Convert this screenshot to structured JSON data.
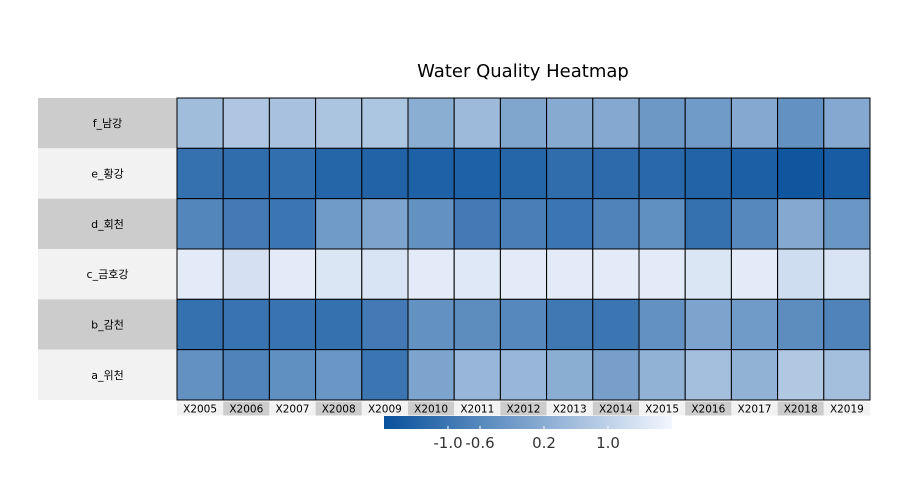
{
  "chart_data": {
    "type": "heatmap",
    "title": "Water Quality Heatmap",
    "rows": [
      "f_남강",
      "e_황강",
      "d_회천",
      "c_금호강",
      "b_감천",
      "a_위천"
    ],
    "columns": [
      "X2005",
      "X2006",
      "X2007",
      "X2008",
      "X2009",
      "X2010",
      "X2011",
      "X2012",
      "X2013",
      "X2014",
      "X2015",
      "X2016",
      "X2017",
      "X2018",
      "X2019"
    ],
    "values": [
      [
        0.55,
        0.75,
        0.65,
        0.7,
        0.72,
        0.2,
        0.5,
        0.05,
        0.15,
        0.1,
        -0.25,
        -0.2,
        0.1,
        -0.4,
        0.1
      ],
      [
        -1.1,
        -1.2,
        -1.15,
        -1.35,
        -1.4,
        -1.45,
        -1.45,
        -1.35,
        -1.2,
        -1.25,
        -1.3,
        -1.4,
        -1.5,
        -1.7,
        -1.55
      ],
      [
        -0.65,
        -0.9,
        -1.0,
        -0.2,
        0.0,
        -0.4,
        -0.9,
        -0.8,
        -1.0,
        -0.7,
        -0.45,
        -1.1,
        -0.6,
        0.1,
        -0.3
      ],
      [
        1.55,
        1.35,
        1.55,
        1.45,
        1.4,
        1.55,
        1.5,
        1.55,
        1.55,
        1.55,
        1.55,
        1.45,
        1.55,
        1.25,
        1.4
      ],
      [
        -1.1,
        -1.05,
        -1.05,
        -1.1,
        -0.9,
        -0.4,
        -0.5,
        -0.6,
        -0.95,
        -1.0,
        -0.4,
        0.0,
        -0.2,
        -0.5,
        -0.7
      ],
      [
        -0.4,
        -0.7,
        -0.45,
        -0.3,
        -1.0,
        0.0,
        0.4,
        0.4,
        0.2,
        -0.1,
        0.3,
        0.6,
        0.3,
        0.8,
        0.6
      ]
    ],
    "colorbar": {
      "ticks": [
        -1.0,
        -0.6,
        0.2,
        1.0
      ],
      "tick_labels": [
        "-1.0",
        "-0.6",
        "0.2",
        "1.0"
      ],
      "range": [
        -1.8,
        1.8
      ],
      "low_color": "#08519c",
      "high_color": "#f2f6fe"
    },
    "row_label_backgrounds": [
      "#cccccc",
      "#f2f2f2"
    ],
    "col_label_backgrounds": [
      "#f2f2f2",
      "#cccccc"
    ],
    "cell_border_color": "#000000"
  }
}
